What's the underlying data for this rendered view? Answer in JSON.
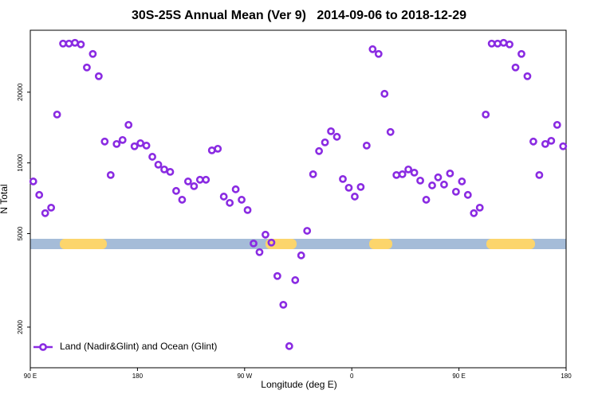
{
  "chart_data": {
    "type": "scatter",
    "title": "30S-25S Annual Mean (Ver 9)   2014-09-06 to 2018-12-29",
    "x_label": "Longitude (deg E)",
    "y_label": "N Total",
    "log_y": true,
    "xlim": [
      90,
      540
    ],
    "ylim": [
      1343,
      36700
    ],
    "xticks": [
      {
        "value": 90,
        "label": "90 E"
      },
      180,
      {
        "value": 270,
        "label": "90 W"
      },
      {
        "value": 360,
        "label": "0"
      },
      {
        "value": 450,
        "label": "90 E"
      },
      {
        "value": 540,
        "label": "180"
      }
    ],
    "yticks": [
      2000,
      5000,
      10000,
      20000
    ],
    "legend": "bottom-left",
    "series": [
      {
        "name": "Land (Nadir&Glint) and Ocean (Glint)",
        "color": "#8a2be2",
        "x": [
          92.5,
          97.5,
          102.5,
          107.5,
          112.5,
          117.5,
          122.5,
          127.5,
          132.5,
          137.5,
          142.5,
          147.5,
          152.5,
          157.5,
          162.5,
          167.5,
          172.5,
          177.5,
          182.5,
          187.5,
          192.5,
          197.5,
          202.5,
          207.5,
          212.5,
          217.5,
          222.5,
          227.5,
          232.5,
          237.5,
          242.5,
          247.5,
          252.5,
          257.5,
          262.5,
          267.5,
          272.5,
          277.5,
          282.5,
          287.5,
          292.5,
          297.5,
          302.5,
          307.5,
          312.5,
          317.5,
          322.5,
          327.5,
          332.5,
          337.5,
          342.5,
          347.5,
          352.5,
          357.5,
          362.5,
          367.5,
          372.5,
          377.5,
          382.5,
          387.5,
          392.5,
          397.5,
          402.5,
          407.5,
          412.5,
          417.5,
          422.5,
          427.5,
          432.5,
          437.5,
          442.5,
          447.5,
          452.5,
          457.5,
          462.5,
          467.5,
          472.5,
          477.5,
          482.5,
          487.5,
          492.5,
          497.5,
          502.5,
          507.5,
          512.5,
          517.5,
          522.5,
          527.5,
          532.5,
          537.5
        ],
        "values": [
          8340,
          7310,
          6110,
          6450,
          16070,
          32200,
          32200,
          32450,
          31950,
          25480,
          29100,
          23390,
          12330,
          8880,
          12040,
          12520,
          14520,
          11770,
          12130,
          11850,
          10620,
          9830,
          9380,
          9160,
          7600,
          6970,
          8340,
          7960,
          8480,
          8480,
          11310,
          11490,
          7190,
          6760,
          7720,
          6970,
          6300,
          4540,
          4170,
          4950,
          4580,
          3300,
          2490,
          1660,
          3170,
          4040,
          5140,
          8950,
          11230,
          12230,
          13640,
          12920,
          8540,
          7840,
          7190,
          7900,
          11850,
          30480,
          29100,
          19690,
          13540,
          8880,
          8950,
          9380,
          9090,
          8410,
          6970,
          8020,
          8680,
          8090,
          9020,
          7540,
          8340,
          7310,
          6110,
          6450,
          16070,
          32200,
          32200,
          32450,
          31950,
          25480,
          29100,
          23390,
          12330,
          8880,
          12040,
          12420,
          14520,
          11770
        ]
      }
    ]
  }
}
